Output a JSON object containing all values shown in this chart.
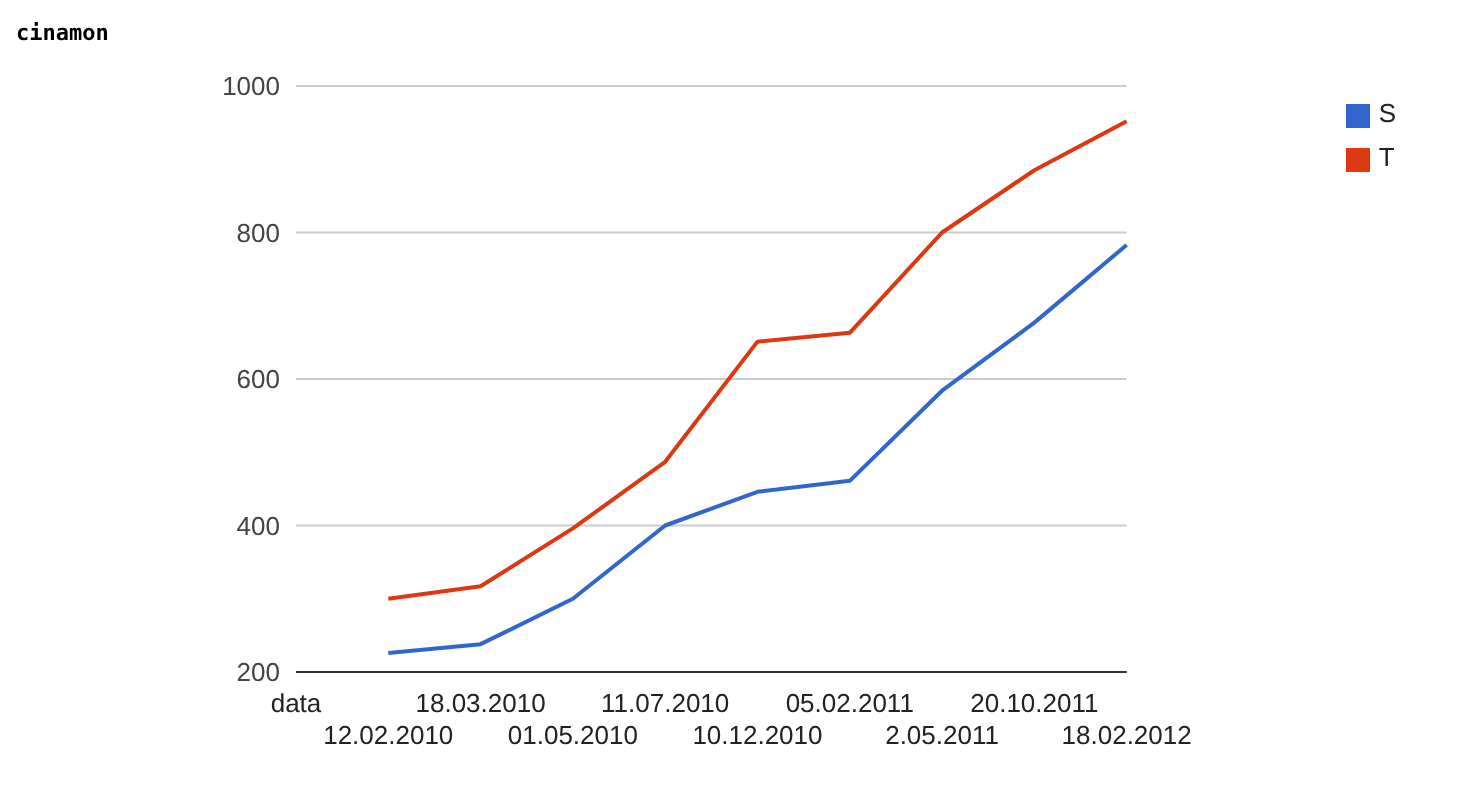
{
  "chart_data": {
    "type": "line",
    "title": "cinamon",
    "categories": [
      "data",
      "12.02.2010",
      "18.03.2010",
      "01.05.2010",
      "11.07.2010",
      "10.12.2010",
      "05.02.2011",
      "2.05.2011",
      "20.10.2011",
      "18.02.2012"
    ],
    "series": [
      {
        "name": "S",
        "color": "#3366cc",
        "values": [
          null,
          226,
          238,
          300,
          400,
          446,
          461,
          584,
          677,
          783
        ]
      },
      {
        "name": "T",
        "color": "#dc3912",
        "values": [
          null,
          300,
          317,
          396,
          487,
          651,
          663,
          800,
          885,
          952
        ]
      }
    ],
    "ylim": [
      200,
      1000
    ],
    "yticks": [
      200,
      400,
      600,
      800,
      1000
    ],
    "grid": "y",
    "legend": "top right",
    "marker": "none",
    "line_style": "solid"
  }
}
